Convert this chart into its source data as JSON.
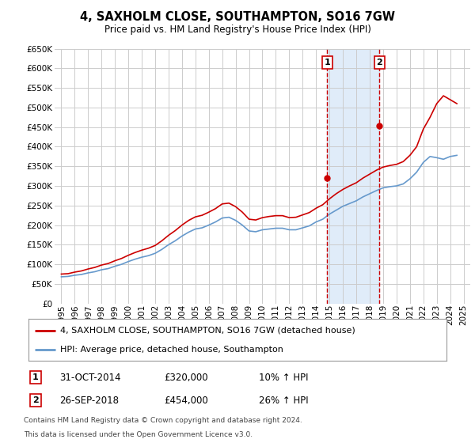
{
  "title": "4, SAXHOLM CLOSE, SOUTHAMPTON, SO16 7GW",
  "subtitle": "Price paid vs. HM Land Registry's House Price Index (HPI)",
  "legend_line1": "4, SAXHOLM CLOSE, SOUTHAMPTON, SO16 7GW (detached house)",
  "legend_line2": "HPI: Average price, detached house, Southampton",
  "footnote1": "Contains HM Land Registry data © Crown copyright and database right 2024.",
  "footnote2": "This data is licensed under the Open Government Licence v3.0.",
  "sale1_label": "1",
  "sale1_date": "31-OCT-2014",
  "sale1_price": "£320,000",
  "sale1_hpi": "10% ↑ HPI",
  "sale2_label": "2",
  "sale2_date": "26-SEP-2018",
  "sale2_price": "£454,000",
  "sale2_hpi": "26% ↑ HPI",
  "sale1_year": 2014.83,
  "sale2_year": 2018.73,
  "sale1_value": 320000,
  "sale2_value": 454000,
  "ylim": [
    0,
    650000
  ],
  "xlim": [
    1994.5,
    2025.5
  ],
  "yticks": [
    0,
    50000,
    100000,
    150000,
    200000,
    250000,
    300000,
    350000,
    400000,
    450000,
    500000,
    550000,
    600000,
    650000
  ],
  "xticks": [
    1995,
    1996,
    1997,
    1998,
    1999,
    2000,
    2001,
    2002,
    2003,
    2004,
    2005,
    2006,
    2007,
    2008,
    2009,
    2010,
    2011,
    2012,
    2013,
    2014,
    2015,
    2016,
    2017,
    2018,
    2019,
    2020,
    2021,
    2022,
    2023,
    2024,
    2025
  ],
  "red_color": "#cc0000",
  "blue_color": "#6699cc",
  "shade_color": "#cce0f5",
  "background_color": "#ffffff",
  "grid_color": "#cccccc",
  "hpi_x": [
    1995,
    1995.5,
    1996,
    1996.5,
    1997,
    1997.5,
    1998,
    1998.5,
    1999,
    1999.5,
    2000,
    2000.5,
    2001,
    2001.5,
    2002,
    2002.5,
    2003,
    2003.5,
    2004,
    2004.5,
    2005,
    2005.5,
    2006,
    2006.5,
    2007,
    2007.5,
    2008,
    2008.5,
    2009,
    2009.5,
    2010,
    2010.5,
    2011,
    2011.5,
    2012,
    2012.5,
    2013,
    2013.5,
    2014,
    2014.5,
    2015,
    2015.5,
    2016,
    2016.5,
    2017,
    2017.5,
    2018,
    2018.5,
    2019,
    2019.5,
    2020,
    2020.5,
    2021,
    2021.5,
    2022,
    2022.5,
    2023,
    2023.5,
    2024,
    2024.5
  ],
  "hpi_y": [
    68000,
    69000,
    72000,
    74000,
    78000,
    81000,
    86000,
    89000,
    95000,
    100000,
    107000,
    113000,
    118000,
    122000,
    128000,
    138000,
    150000,
    160000,
    172000,
    182000,
    190000,
    193000,
    200000,
    208000,
    218000,
    220000,
    212000,
    200000,
    185000,
    183000,
    188000,
    190000,
    192000,
    192000,
    188000,
    188000,
    193000,
    198000,
    208000,
    215000,
    228000,
    238000,
    248000,
    255000,
    262000,
    272000,
    280000,
    288000,
    295000,
    298000,
    300000,
    305000,
    318000,
    335000,
    360000,
    375000,
    372000,
    368000,
    375000,
    378000
  ],
  "red_x": [
    1995,
    1995.5,
    1996,
    1996.5,
    1997,
    1997.5,
    1998,
    1998.5,
    1999,
    1999.5,
    2000,
    2000.5,
    2001,
    2001.5,
    2002,
    2002.5,
    2003,
    2003.5,
    2004,
    2004.5,
    2005,
    2005.5,
    2006,
    2006.5,
    2007,
    2007.5,
    2008,
    2008.5,
    2009,
    2009.5,
    2010,
    2010.5,
    2011,
    2011.5,
    2012,
    2012.5,
    2013,
    2013.5,
    2014,
    2014.5,
    2015,
    2015.5,
    2016,
    2016.5,
    2017,
    2017.5,
    2018,
    2018.5,
    2019,
    2019.5,
    2020,
    2020.5,
    2021,
    2021.5,
    2022,
    2022.5,
    2023,
    2023.5,
    2024,
    2024.5
  ],
  "red_y": [
    75000,
    76000,
    80000,
    83000,
    88000,
    92000,
    98000,
    102000,
    109000,
    115000,
    123000,
    130000,
    136000,
    141000,
    148000,
    160000,
    174000,
    186000,
    200000,
    212000,
    221000,
    225000,
    233000,
    242000,
    254000,
    256000,
    247000,
    233000,
    215000,
    213000,
    219000,
    222000,
    224000,
    224000,
    219000,
    220000,
    226000,
    232000,
    243000,
    252000,
    267000,
    280000,
    291000,
    300000,
    308000,
    320000,
    330000,
    340000,
    348000,
    352000,
    355000,
    362000,
    378000,
    400000,
    445000,
    475000,
    510000,
    530000,
    520000,
    510000
  ]
}
